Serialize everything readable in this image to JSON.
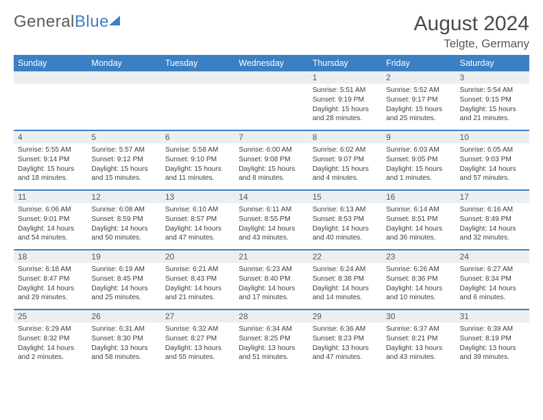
{
  "logo": {
    "word1": "General",
    "word2": "Blue"
  },
  "title": "August 2024",
  "location": "Telgte, Germany",
  "weekday_labels": [
    "Sunday",
    "Monday",
    "Tuesday",
    "Wednesday",
    "Thursday",
    "Friday",
    "Saturday"
  ],
  "colors": {
    "header_bg": "#3b7fc4",
    "row_border": "#3b7fc4",
    "daynum_bg": "#eceff1",
    "text": "#3d3d3d"
  },
  "weeks": [
    [
      {
        "n": "",
        "sr": "",
        "ss": "",
        "dl1": "",
        "dl2": ""
      },
      {
        "n": "",
        "sr": "",
        "ss": "",
        "dl1": "",
        "dl2": ""
      },
      {
        "n": "",
        "sr": "",
        "ss": "",
        "dl1": "",
        "dl2": ""
      },
      {
        "n": "",
        "sr": "",
        "ss": "",
        "dl1": "",
        "dl2": ""
      },
      {
        "n": "1",
        "sr": "Sunrise: 5:51 AM",
        "ss": "Sunset: 9:19 PM",
        "dl1": "Daylight: 15 hours",
        "dl2": "and 28 minutes."
      },
      {
        "n": "2",
        "sr": "Sunrise: 5:52 AM",
        "ss": "Sunset: 9:17 PM",
        "dl1": "Daylight: 15 hours",
        "dl2": "and 25 minutes."
      },
      {
        "n": "3",
        "sr": "Sunrise: 5:54 AM",
        "ss": "Sunset: 9:15 PM",
        "dl1": "Daylight: 15 hours",
        "dl2": "and 21 minutes."
      }
    ],
    [
      {
        "n": "4",
        "sr": "Sunrise: 5:55 AM",
        "ss": "Sunset: 9:14 PM",
        "dl1": "Daylight: 15 hours",
        "dl2": "and 18 minutes."
      },
      {
        "n": "5",
        "sr": "Sunrise: 5:57 AM",
        "ss": "Sunset: 9:12 PM",
        "dl1": "Daylight: 15 hours",
        "dl2": "and 15 minutes."
      },
      {
        "n": "6",
        "sr": "Sunrise: 5:58 AM",
        "ss": "Sunset: 9:10 PM",
        "dl1": "Daylight: 15 hours",
        "dl2": "and 11 minutes."
      },
      {
        "n": "7",
        "sr": "Sunrise: 6:00 AM",
        "ss": "Sunset: 9:08 PM",
        "dl1": "Daylight: 15 hours",
        "dl2": "and 8 minutes."
      },
      {
        "n": "8",
        "sr": "Sunrise: 6:02 AM",
        "ss": "Sunset: 9:07 PM",
        "dl1": "Daylight: 15 hours",
        "dl2": "and 4 minutes."
      },
      {
        "n": "9",
        "sr": "Sunrise: 6:03 AM",
        "ss": "Sunset: 9:05 PM",
        "dl1": "Daylight: 15 hours",
        "dl2": "and 1 minutes."
      },
      {
        "n": "10",
        "sr": "Sunrise: 6:05 AM",
        "ss": "Sunset: 9:03 PM",
        "dl1": "Daylight: 14 hours",
        "dl2": "and 57 minutes."
      }
    ],
    [
      {
        "n": "11",
        "sr": "Sunrise: 6:06 AM",
        "ss": "Sunset: 9:01 PM",
        "dl1": "Daylight: 14 hours",
        "dl2": "and 54 minutes."
      },
      {
        "n": "12",
        "sr": "Sunrise: 6:08 AM",
        "ss": "Sunset: 8:59 PM",
        "dl1": "Daylight: 14 hours",
        "dl2": "and 50 minutes."
      },
      {
        "n": "13",
        "sr": "Sunrise: 6:10 AM",
        "ss": "Sunset: 8:57 PM",
        "dl1": "Daylight: 14 hours",
        "dl2": "and 47 minutes."
      },
      {
        "n": "14",
        "sr": "Sunrise: 6:11 AM",
        "ss": "Sunset: 8:55 PM",
        "dl1": "Daylight: 14 hours",
        "dl2": "and 43 minutes."
      },
      {
        "n": "15",
        "sr": "Sunrise: 6:13 AM",
        "ss": "Sunset: 8:53 PM",
        "dl1": "Daylight: 14 hours",
        "dl2": "and 40 minutes."
      },
      {
        "n": "16",
        "sr": "Sunrise: 6:14 AM",
        "ss": "Sunset: 8:51 PM",
        "dl1": "Daylight: 14 hours",
        "dl2": "and 36 minutes."
      },
      {
        "n": "17",
        "sr": "Sunrise: 6:16 AM",
        "ss": "Sunset: 8:49 PM",
        "dl1": "Daylight: 14 hours",
        "dl2": "and 32 minutes."
      }
    ],
    [
      {
        "n": "18",
        "sr": "Sunrise: 6:18 AM",
        "ss": "Sunset: 8:47 PM",
        "dl1": "Daylight: 14 hours",
        "dl2": "and 29 minutes."
      },
      {
        "n": "19",
        "sr": "Sunrise: 6:19 AM",
        "ss": "Sunset: 8:45 PM",
        "dl1": "Daylight: 14 hours",
        "dl2": "and 25 minutes."
      },
      {
        "n": "20",
        "sr": "Sunrise: 6:21 AM",
        "ss": "Sunset: 8:43 PM",
        "dl1": "Daylight: 14 hours",
        "dl2": "and 21 minutes."
      },
      {
        "n": "21",
        "sr": "Sunrise: 6:23 AM",
        "ss": "Sunset: 8:40 PM",
        "dl1": "Daylight: 14 hours",
        "dl2": "and 17 minutes."
      },
      {
        "n": "22",
        "sr": "Sunrise: 6:24 AM",
        "ss": "Sunset: 8:38 PM",
        "dl1": "Daylight: 14 hours",
        "dl2": "and 14 minutes."
      },
      {
        "n": "23",
        "sr": "Sunrise: 6:26 AM",
        "ss": "Sunset: 8:36 PM",
        "dl1": "Daylight: 14 hours",
        "dl2": "and 10 minutes."
      },
      {
        "n": "24",
        "sr": "Sunrise: 6:27 AM",
        "ss": "Sunset: 8:34 PM",
        "dl1": "Daylight: 14 hours",
        "dl2": "and 6 minutes."
      }
    ],
    [
      {
        "n": "25",
        "sr": "Sunrise: 6:29 AM",
        "ss": "Sunset: 8:32 PM",
        "dl1": "Daylight: 14 hours",
        "dl2": "and 2 minutes."
      },
      {
        "n": "26",
        "sr": "Sunrise: 6:31 AM",
        "ss": "Sunset: 8:30 PM",
        "dl1": "Daylight: 13 hours",
        "dl2": "and 58 minutes."
      },
      {
        "n": "27",
        "sr": "Sunrise: 6:32 AM",
        "ss": "Sunset: 8:27 PM",
        "dl1": "Daylight: 13 hours",
        "dl2": "and 55 minutes."
      },
      {
        "n": "28",
        "sr": "Sunrise: 6:34 AM",
        "ss": "Sunset: 8:25 PM",
        "dl1": "Daylight: 13 hours",
        "dl2": "and 51 minutes."
      },
      {
        "n": "29",
        "sr": "Sunrise: 6:36 AM",
        "ss": "Sunset: 8:23 PM",
        "dl1": "Daylight: 13 hours",
        "dl2": "and 47 minutes."
      },
      {
        "n": "30",
        "sr": "Sunrise: 6:37 AM",
        "ss": "Sunset: 8:21 PM",
        "dl1": "Daylight: 13 hours",
        "dl2": "and 43 minutes."
      },
      {
        "n": "31",
        "sr": "Sunrise: 6:39 AM",
        "ss": "Sunset: 8:19 PM",
        "dl1": "Daylight: 13 hours",
        "dl2": "and 39 minutes."
      }
    ]
  ]
}
